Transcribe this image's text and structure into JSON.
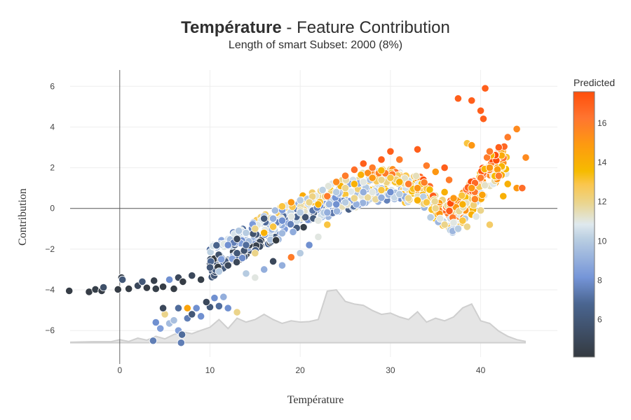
{
  "chart_data": {
    "type": "scatter",
    "title_bold": "Température",
    "title_rest": " - Feature Contribution",
    "subtitle": "Length of smart Subset: 2000 (8%)",
    "xlabel": "Température",
    "ylabel": "Contribution",
    "xlim": [
      -5.5,
      48.5
    ],
    "ylim": [
      -7.3,
      6.8
    ],
    "x_ticks": [
      0,
      10,
      20,
      30,
      40
    ],
    "y_ticks": [
      6,
      4,
      2,
      0,
      -2,
      -4,
      -6
    ],
    "y_tick_labels": [
      "6",
      "4",
      "2",
      "0",
      "−2",
      "−4",
      "−6"
    ],
    "grid": true,
    "colorbar": {
      "title": "Predicted",
      "range": [
        4.1,
        17.6
      ],
      "ticks": [
        6,
        8,
        10,
        12,
        14,
        16
      ],
      "colorscale": [
        [
          0.0,
          "#343a40"
        ],
        [
          0.2,
          "#4a6590"
        ],
        [
          0.3,
          "#7595d8"
        ],
        [
          0.45,
          "#bcd0e2"
        ],
        [
          0.5,
          "#dfe9ee"
        ],
        [
          0.58,
          "#ead58f"
        ],
        [
          0.65,
          "#fac64e"
        ],
        [
          0.7,
          "#f6bb00"
        ],
        [
          0.8,
          "#fd9a10"
        ],
        [
          0.9,
          "#ff7530"
        ],
        [
          1.0,
          "#ff4e0a"
        ]
      ]
    },
    "density": {
      "x": [
        -5.5,
        -3,
        -1,
        0,
        1,
        2,
        3,
        4,
        5,
        6,
        7,
        8,
        9,
        10,
        11,
        12,
        13,
        14,
        15,
        16,
        17,
        18,
        19,
        20,
        21,
        22,
        23,
        24,
        25,
        26,
        27,
        28,
        29,
        30,
        31,
        32,
        33,
        34,
        35,
        36,
        37,
        38,
        39,
        40,
        41,
        42,
        43,
        44,
        45
      ],
      "y": [
        0.02,
        0.04,
        0.04,
        0.12,
        0.05,
        0.18,
        0.1,
        0.25,
        0.15,
        0.32,
        0.42,
        0.35,
        0.48,
        0.6,
        0.9,
        0.55,
        0.95,
        0.8,
        0.9,
        1.1,
        0.9,
        0.75,
        0.85,
        0.8,
        0.82,
        0.9,
        2.0,
        2.05,
        1.6,
        1.5,
        1.45,
        1.25,
        1.1,
        1.15,
        1.0,
        0.9,
        1.2,
        0.8,
        0.95,
        0.85,
        1.0,
        1.35,
        1.5,
        0.85,
        0.75,
        0.45,
        0.25,
        0.12,
        0.05
      ],
      "fill": "#e5e5e5",
      "line": "#cfcfcf",
      "baseline_contribution": -6.6,
      "max_height_contribution": 2.6
    },
    "series": [
      {
        "name": "Predicted",
        "points_generated_note": "approx. trend of points: contribution vs temperature",
        "trend": [
          [
            -5.5,
            -4.05
          ],
          [
            0,
            -3.95
          ],
          [
            5,
            -3.8
          ],
          [
            10,
            -2.7
          ],
          [
            15,
            -1.3
          ],
          [
            20,
            -0.2
          ],
          [
            25,
            0.7
          ],
          [
            28,
            1.1
          ],
          [
            30,
            1.2
          ],
          [
            33,
            0.9
          ],
          [
            35,
            0.1
          ],
          [
            37,
            -0.5
          ],
          [
            39,
            0.6
          ],
          [
            41,
            1.8
          ],
          [
            43,
            2.5
          ],
          [
            45,
            2.5
          ]
        ],
        "sample_points": [
          [
            -5.6,
            -4.05,
            4.3
          ],
          [
            -3.4,
            -4.1,
            4.3
          ],
          [
            -2.7,
            -3.98,
            4.4
          ],
          [
            -2,
            -4.05,
            4.3
          ],
          [
            -1.8,
            -3.88,
            5.5
          ],
          [
            -0.2,
            -3.98,
            4.3
          ],
          [
            0.2,
            -3.4,
            4.5
          ],
          [
            0.3,
            -3.5,
            6
          ],
          [
            1,
            -3.95,
            4.3
          ],
          [
            2,
            -3.8,
            5
          ],
          [
            2.5,
            -3.6,
            6
          ],
          [
            3,
            -3.9,
            4.3
          ],
          [
            3.8,
            -3.55,
            4.5
          ],
          [
            4,
            -3.95,
            4.4
          ],
          [
            4.8,
            -3.85,
            4.3
          ],
          [
            5.5,
            -3.5,
            8
          ],
          [
            6,
            -3.95,
            4.3
          ],
          [
            6.5,
            -3.4,
            5
          ],
          [
            7,
            -3.6,
            4.3
          ],
          [
            8,
            -3.3,
            5
          ],
          [
            9,
            -3.5,
            4.4
          ],
          [
            10,
            -2.9,
            6
          ],
          [
            4,
            -5.6,
            8
          ],
          [
            4.5,
            -5.9,
            8.5
          ],
          [
            5,
            -5.2,
            12
          ],
          [
            5.5,
            -5.65,
            9.5
          ],
          [
            6,
            -5.5,
            9.6
          ],
          [
            6.5,
            -6.0,
            8.5
          ],
          [
            7.5,
            -5.4,
            7.5
          ],
          [
            8,
            -5.2,
            6
          ],
          [
            9,
            -5.3,
            8
          ],
          [
            10,
            -4.85,
            6
          ],
          [
            11,
            -4.8,
            7
          ],
          [
            12,
            -4.9,
            8
          ],
          [
            13,
            -5.1,
            12
          ],
          [
            3.7,
            -6.5,
            7.5
          ],
          [
            6.8,
            -6.6,
            7.5
          ],
          [
            6.9,
            -6.2,
            7
          ],
          [
            4.8,
            -4.9,
            5
          ],
          [
            6.5,
            -4.9,
            7
          ],
          [
            7.5,
            -4.9,
            14.5
          ],
          [
            8.5,
            -4.9,
            8
          ],
          [
            9.6,
            -4.6,
            5
          ],
          [
            10.5,
            -4.4,
            8
          ],
          [
            11.5,
            -4.35,
            9
          ],
          [
            11,
            -3.1,
            10
          ],
          [
            12,
            -2.8,
            5
          ],
          [
            13,
            -2.2,
            6
          ],
          [
            14,
            -1.8,
            7
          ],
          [
            15,
            -2.2,
            12
          ],
          [
            16,
            -1.2,
            14
          ],
          [
            17,
            -0.9,
            13
          ],
          [
            18,
            -0.6,
            8
          ],
          [
            19,
            -0.4,
            11
          ],
          [
            20,
            -0.2,
            10
          ],
          [
            12,
            -1.8,
            8
          ],
          [
            13,
            -1.5,
            5
          ],
          [
            14,
            -1.2,
            10
          ],
          [
            15,
            -1.0,
            12
          ],
          [
            16,
            -0.5,
            6
          ],
          [
            17,
            -0.5,
            9
          ],
          [
            18,
            0.1,
            13
          ],
          [
            19,
            0.3,
            15
          ],
          [
            20,
            0.4,
            10
          ],
          [
            21,
            0.3,
            12
          ],
          [
            14,
            -3.2,
            10
          ],
          [
            15,
            -3.4,
            11
          ],
          [
            16,
            -3.0,
            9
          ],
          [
            17,
            -2.6,
            5
          ],
          [
            18,
            -2.8,
            9
          ],
          [
            19,
            -2.4,
            16
          ],
          [
            20,
            -2.2,
            10
          ],
          [
            21,
            -1.8,
            8
          ],
          [
            22,
            -1.4,
            11
          ],
          [
            23,
            -0.8,
            13
          ],
          [
            22,
            0.2,
            14
          ],
          [
            23,
            0.6,
            16
          ],
          [
            24,
            0.8,
            10
          ],
          [
            25,
            1.0,
            12
          ],
          [
            26,
            1.2,
            14
          ],
          [
            27,
            1.3,
            11
          ],
          [
            28,
            1.5,
            15
          ],
          [
            29,
            1.4,
            12
          ],
          [
            30,
            1.5,
            13
          ],
          [
            31,
            1.3,
            14
          ],
          [
            32,
            1.2,
            16
          ],
          [
            33,
            1.0,
            15
          ],
          [
            22,
            -0.6,
            11
          ],
          [
            23,
            -0.2,
            9
          ],
          [
            24,
            0.2,
            8
          ],
          [
            25,
            0.3,
            10
          ],
          [
            26,
            0.5,
            12
          ],
          [
            27,
            0.8,
            9
          ],
          [
            28,
            0.8,
            11
          ],
          [
            29,
            0.9,
            13
          ],
          [
            30,
            0.8,
            8
          ],
          [
            31,
            0.7,
            10
          ],
          [
            32,
            0.5,
            12
          ],
          [
            33,
            0.4,
            14
          ],
          [
            24,
            1.3,
            15.5
          ],
          [
            25,
            1.6,
            16
          ],
          [
            26,
            1.9,
            16.5
          ],
          [
            27,
            2.2,
            17
          ],
          [
            28,
            2.0,
            16
          ],
          [
            29,
            2.4,
            17
          ],
          [
            30,
            2.8,
            17
          ],
          [
            31,
            2.4,
            16
          ],
          [
            33,
            2.9,
            17
          ],
          [
            34,
            2.1,
            16
          ],
          [
            35,
            1.8,
            15
          ],
          [
            34,
            0.3,
            13
          ],
          [
            35,
            0.0,
            12
          ],
          [
            35.5,
            -0.5,
            11
          ],
          [
            36,
            -0.8,
            12
          ],
          [
            37,
            -0.7,
            11
          ],
          [
            37.5,
            -1.0,
            10
          ],
          [
            38,
            -0.6,
            13
          ],
          [
            38.5,
            -0.9,
            12
          ],
          [
            39,
            -0.3,
            14
          ],
          [
            39.5,
            -0.4,
            11
          ],
          [
            40,
            -0.1,
            12
          ],
          [
            41,
            -0.8,
            12.5
          ],
          [
            36,
            0.8,
            14
          ],
          [
            37,
            0.5,
            15
          ],
          [
            38,
            0.2,
            14
          ],
          [
            39,
            1.0,
            15
          ],
          [
            40,
            1.5,
            16
          ],
          [
            41,
            2.0,
            15
          ],
          [
            42,
            1.6,
            16
          ],
          [
            43,
            1.2,
            14
          ],
          [
            44,
            1.0,
            15
          ],
          [
            45,
            2.5,
            15.5
          ],
          [
            37.5,
            5.4,
            17
          ],
          [
            39,
            5.3,
            17
          ],
          [
            40,
            4.8,
            17
          ],
          [
            40.3,
            4.4,
            17
          ],
          [
            40.5,
            5.9,
            17
          ],
          [
            43,
            3.5,
            16
          ],
          [
            44,
            3.9,
            15.5
          ],
          [
            42,
            3.0,
            17
          ],
          [
            40.7,
            2.5,
            16
          ],
          [
            38.5,
            3.2,
            13
          ],
          [
            39,
            3.1,
            15
          ],
          [
            41,
            2.8,
            16
          ],
          [
            36,
            2.0,
            17
          ],
          [
            36.5,
            1.4,
            16
          ],
          [
            44.6,
            1.0,
            16.5
          ],
          [
            42.5,
            0.6,
            14
          ]
        ]
      }
    ]
  }
}
